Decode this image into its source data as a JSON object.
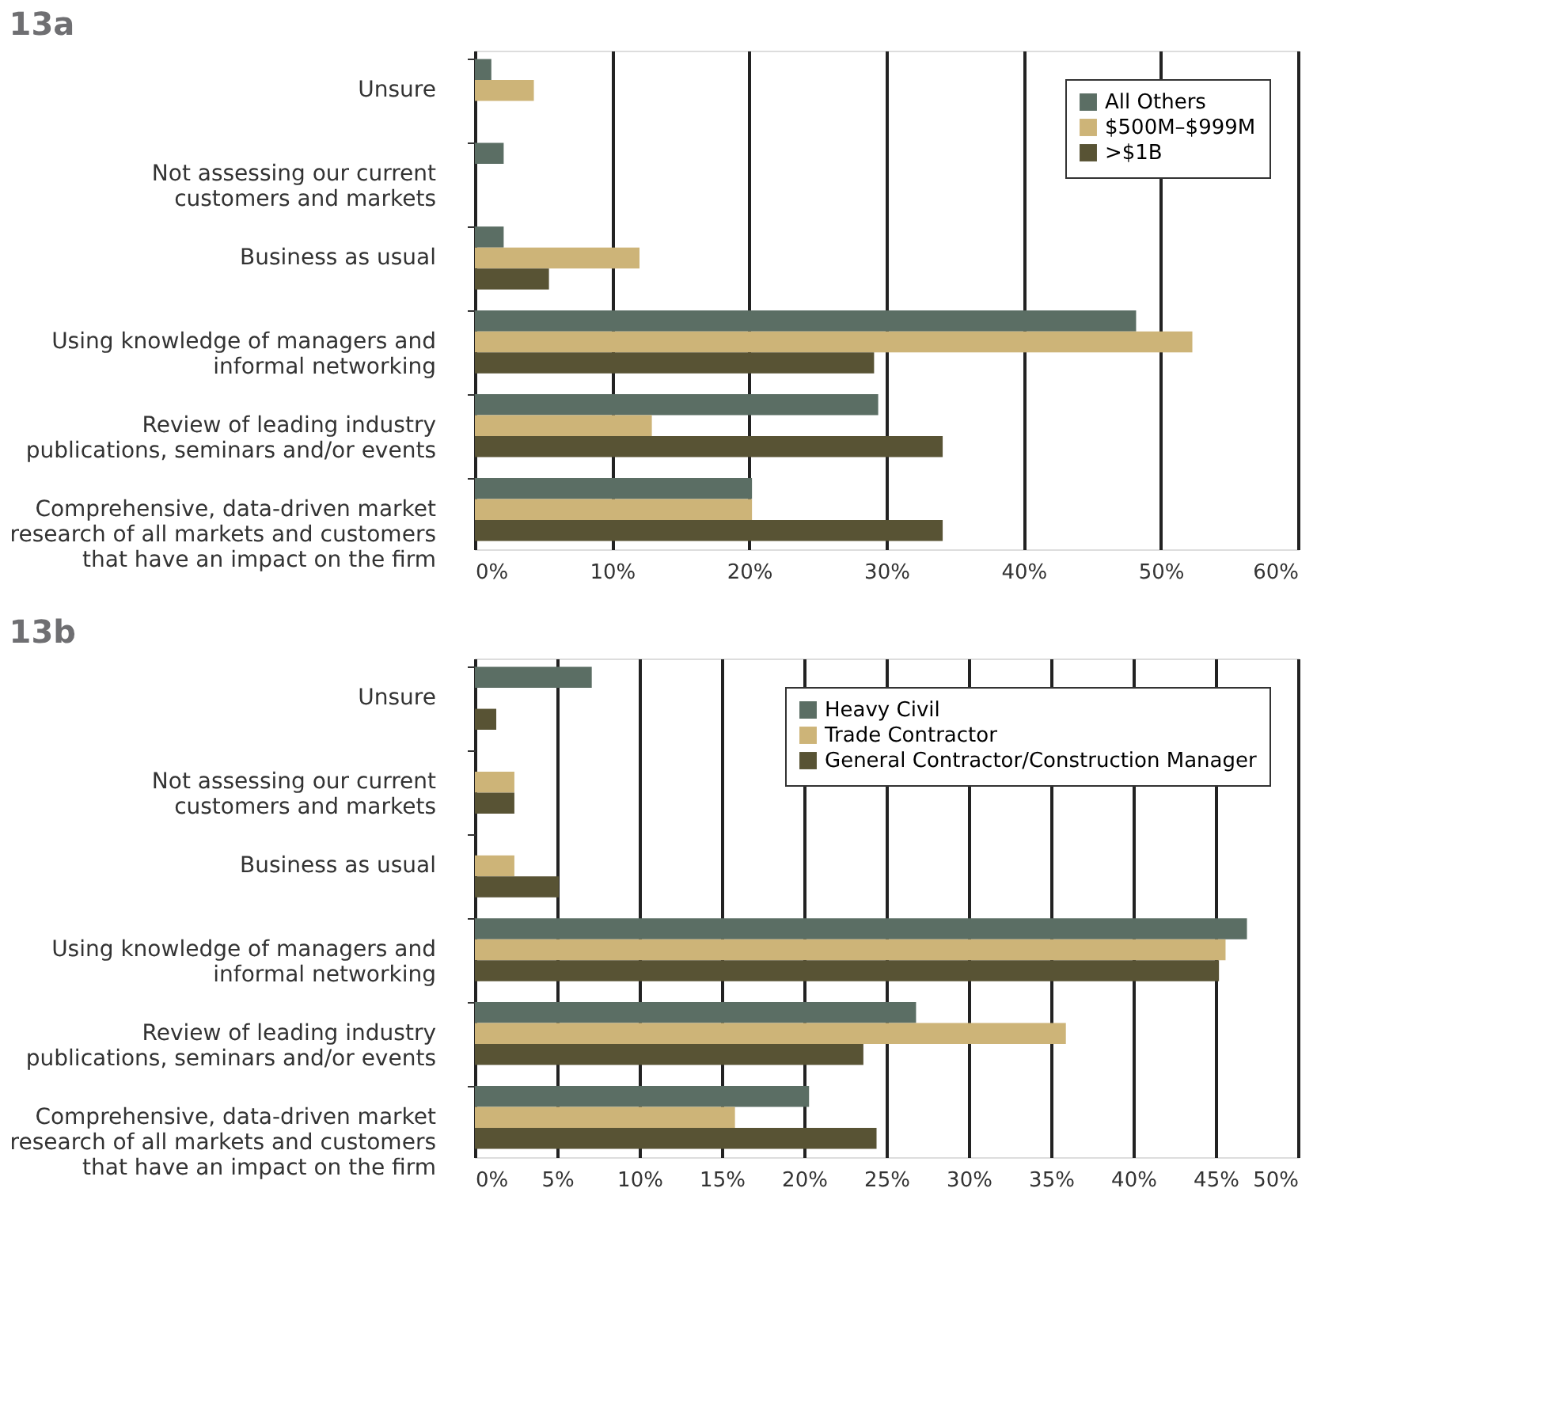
{
  "chart_data": [
    {
      "type": "bar",
      "orientation": "horizontal",
      "title": "13a",
      "categories": [
        "Unsure",
        "Not assessing our current\ncustomers and markets",
        "Business as usual",
        "Using knowledge of managers and\ninformal networking",
        "Review of leading industry\npublications, seminars and/or events",
        "Comprehensive, data-driven market\nresearch of all markets and customers\nthat have an impact on the firm"
      ],
      "series": [
        {
          "name": "All Others",
          "color": "#5b6e64",
          "values": [
            1.2,
            2.1,
            2.1,
            48.2,
            29.4,
            20.2
          ]
        },
        {
          "name": "$500M–$999M",
          "color": "#cdb478",
          "values": [
            4.3,
            0,
            12.0,
            52.3,
            12.9,
            20.2
          ]
        },
        {
          "name": ">$1B",
          "color": "#585334",
          "values": [
            0,
            0,
            5.4,
            29.1,
            34.1,
            34.1
          ]
        }
      ],
      "xlim": [
        0,
        60
      ],
      "xticks": [
        {
          "value": 0,
          "label": "0%"
        },
        {
          "value": 10,
          "label": "10%"
        },
        {
          "value": 20,
          "label": "20%"
        },
        {
          "value": 30,
          "label": "30%"
        },
        {
          "value": 40,
          "label": "40%"
        },
        {
          "value": 50,
          "label": "50%"
        },
        {
          "value": 60,
          "label": "60%"
        }
      ],
      "grid": "x",
      "legend": "top right"
    },
    {
      "type": "bar",
      "orientation": "horizontal",
      "title": "13b",
      "categories": [
        "Unsure",
        "Not assessing our current\ncustomers and markets",
        "Business as usual",
        "Using knowledge of managers and\ninformal networking",
        "Review of leading industry\npublications, seminars and/or events",
        "Comprehensive, data-driven market\nresearch of all markets and customers\nthat have an impact on the firm"
      ],
      "series": [
        {
          "name": "Heavy Civil",
          "color": "#5b6e64",
          "values": [
            7.1,
            0,
            0,
            46.9,
            26.8,
            20.3
          ]
        },
        {
          "name": "Trade Contractor",
          "color": "#cdb478",
          "values": [
            0,
            2.4,
            2.4,
            45.6,
            35.9,
            15.8
          ]
        },
        {
          "name": "General Contractor/Construction Manager",
          "color": "#585334",
          "values": [
            1.3,
            2.4,
            5.1,
            45.2,
            23.6,
            24.4
          ]
        }
      ],
      "xlim": [
        0,
        50
      ],
      "xticks": [
        {
          "value": 0,
          "label": "0%"
        },
        {
          "value": 5,
          "label": "5%"
        },
        {
          "value": 10,
          "label": "10%"
        },
        {
          "value": 15,
          "label": "15%"
        },
        {
          "value": 20,
          "label": "20%"
        },
        {
          "value": 25,
          "label": "25%"
        },
        {
          "value": 30,
          "label": "30%"
        },
        {
          "value": 35,
          "label": "35%"
        },
        {
          "value": 40,
          "label": "40%"
        },
        {
          "value": 45,
          "label": "45%"
        },
        {
          "value": 50,
          "label": "50%"
        }
      ],
      "grid": "x",
      "legend": "top right"
    }
  ]
}
